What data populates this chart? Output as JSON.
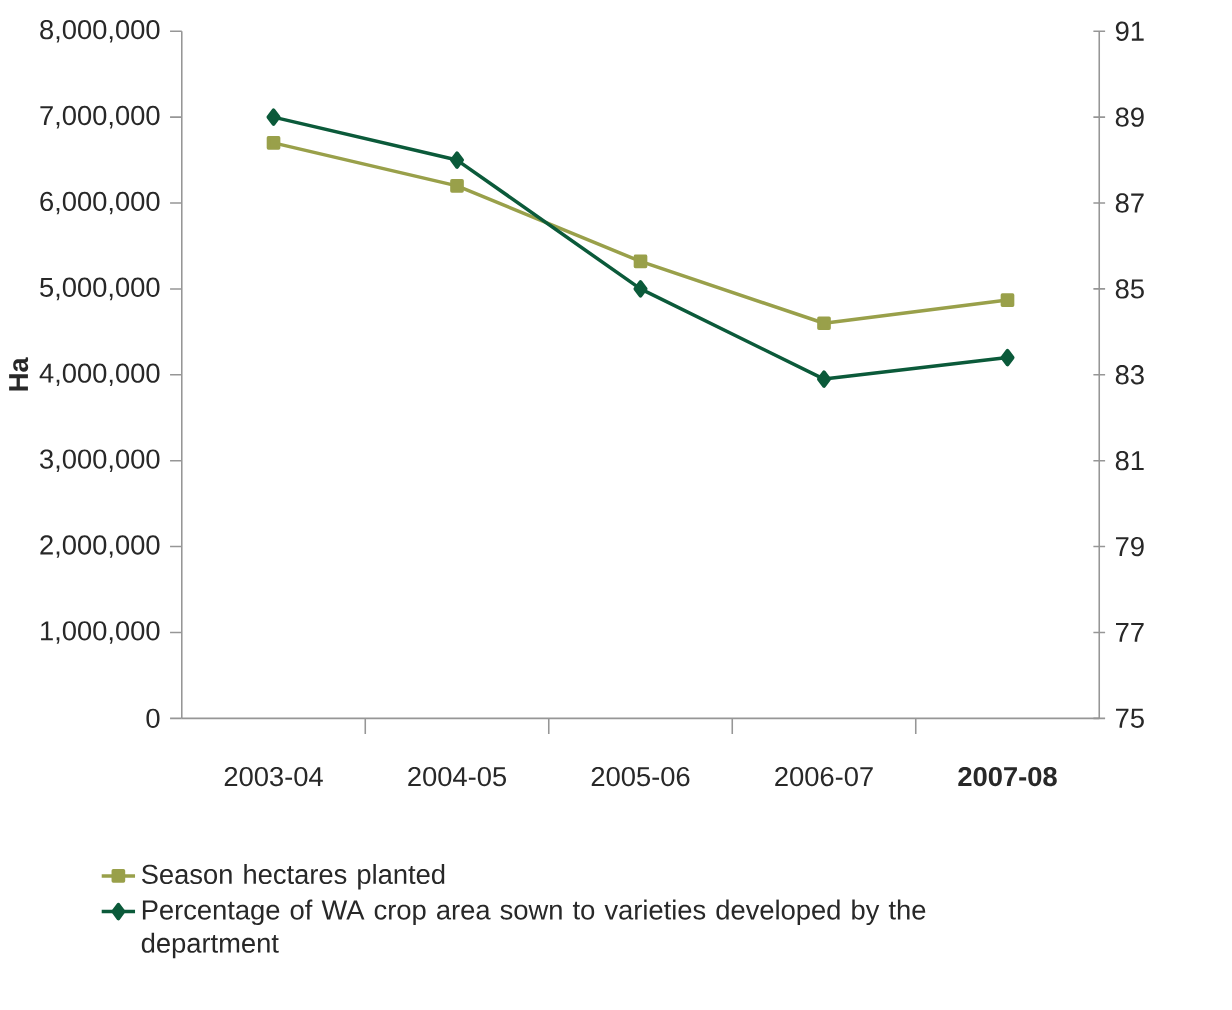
{
  "chart_data": {
    "type": "line",
    "ylabel": "Ha",
    "categories": [
      "2003-04",
      "2004-05",
      "2005-06",
      "2006-07",
      "**2007-08**"
    ],
    "ylim": [
      0,
      8000000
    ],
    "yticks": [
      {
        "value": 0,
        "label": "0"
      },
      {
        "value": 1000000,
        "label": "1,000,000"
      },
      {
        "value": 2000000,
        "label": "2,000,000"
      },
      {
        "value": 3000000,
        "label": "3,000,000"
      },
      {
        "value": 4000000,
        "label": "4,000,000"
      },
      {
        "value": 5000000,
        "label": "5,000,000"
      },
      {
        "value": 6000000,
        "label": "6,000,000"
      },
      {
        "value": 7000000,
        "label": "7,000,000"
      },
      {
        "value": 8000000,
        "label": "8,000,000"
      }
    ],
    "y2lim": [
      75,
      91
    ],
    "y2ticks": [
      75,
      77,
      79,
      81,
      83,
      85,
      87,
      89,
      91
    ],
    "legend": "bottom",
    "grid": false,
    "series": [
      {
        "name": "Season hectares planted",
        "color": "#99a04a",
        "marker": "square",
        "values": [
          6700000,
          6200000,
          5320000,
          4600000,
          4870000
        ]
      },
      {
        "name": "Percentage of WA crop area sown to varieties developed by the department",
        "color": "#0b5a3a",
        "marker": "diamond",
        "axis": "y2",
        "values": [
          89,
          88,
          85,
          82.9,
          83.4
        ]
      }
    ]
  }
}
